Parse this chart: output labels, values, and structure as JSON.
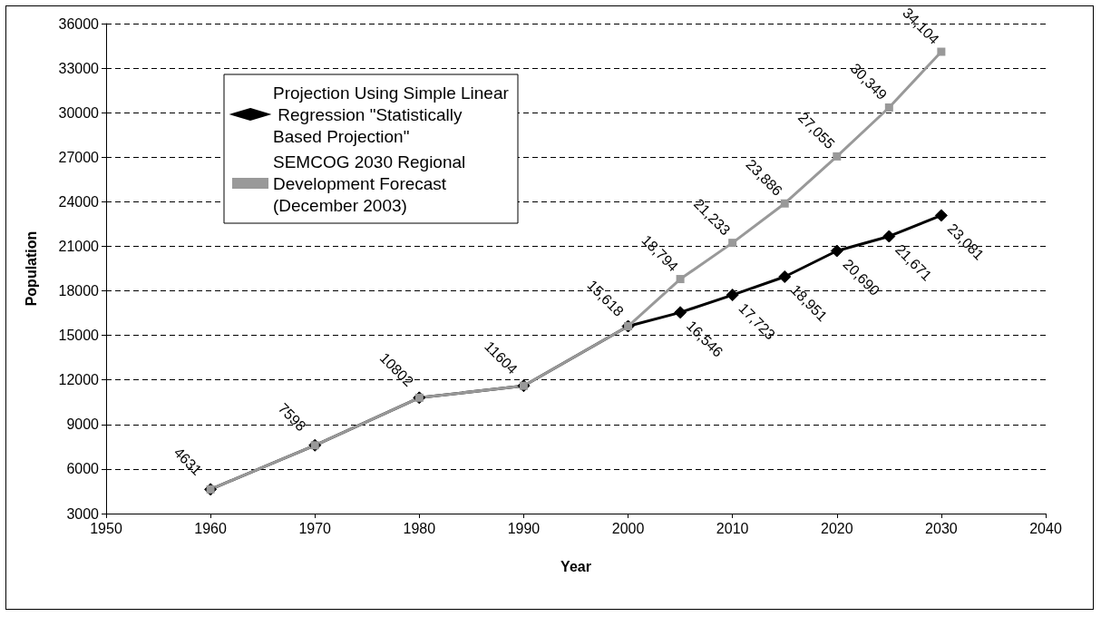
{
  "chart_data": {
    "type": "line",
    "xlabel": "Year",
    "ylabel": "Population",
    "xlim": [
      1950,
      2040
    ],
    "xticks": [
      1950,
      1960,
      1970,
      1980,
      1990,
      2000,
      2010,
      2020,
      2030,
      2040
    ],
    "ylim": [
      3000,
      36000
    ],
    "yticks": [
      3000,
      6000,
      9000,
      12000,
      15000,
      18000,
      21000,
      24000,
      27000,
      30000,
      33000,
      36000
    ],
    "grid": "y",
    "legend": "top left",
    "line_style": "solid",
    "series": [
      {
        "name": "Projection Using Simple Linear Regression \"Statistically Based Projection\"",
        "color": "#000000",
        "marker": "diamond",
        "x": [
          1960,
          1970,
          1980,
          1990,
          2000,
          2005,
          2010,
          2015,
          2020,
          2025,
          2030
        ],
        "values": [
          4631,
          7598,
          10802,
          11604,
          15618,
          16546,
          17723,
          18951,
          20690,
          21671,
          23081
        ],
        "value_labels": [
          "4631",
          "7598",
          "10802",
          "11604",
          "15,618",
          "16,546",
          "17,723",
          "18,951",
          "20,690",
          "21,671",
          "23,081"
        ]
      },
      {
        "name": "SEMCOG 2030 Regional Development Forecast (December 2003)",
        "color": "#999999",
        "marker": "square",
        "x": [
          1960,
          1970,
          1980,
          1990,
          2000,
          2005,
          2010,
          2015,
          2020,
          2025,
          2030
        ],
        "values": [
          4631,
          7598,
          10802,
          11604,
          15618,
          18794,
          21233,
          23886,
          27055,
          30349,
          34104
        ],
        "value_labels": [
          null,
          null,
          null,
          null,
          null,
          "18,794",
          "21,233",
          "23,886",
          "27,055",
          "30,349",
          "34,104"
        ]
      }
    ]
  }
}
